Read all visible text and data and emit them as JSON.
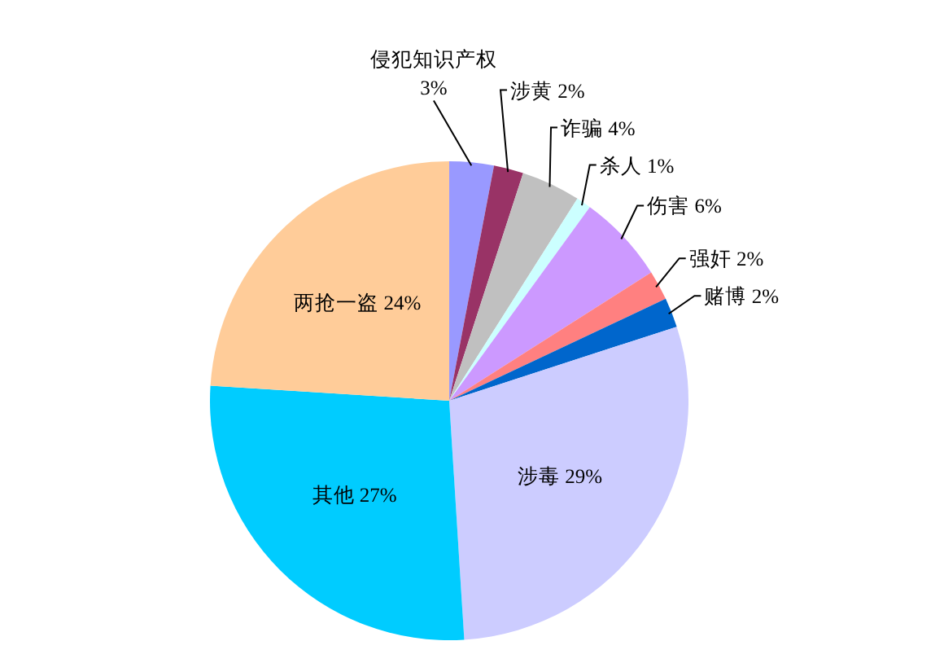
{
  "chart_data": {
    "type": "pie",
    "categories": [
      "侵犯知识产权",
      "涉黄",
      "诈骗",
      "杀人",
      "伤害",
      "强奸",
      "赌博",
      "涉毒",
      "其他",
      "两抢一盗"
    ],
    "values": [
      3,
      2,
      4,
      1,
      6,
      2,
      2,
      29,
      27,
      24
    ],
    "value_labels": [
      "3%",
      "2%",
      "4%",
      "1%",
      "6%",
      "2%",
      "2%",
      "29%",
      "27%",
      "24%"
    ],
    "colors": [
      "#9999ff",
      "#993366",
      "#c0c0c0",
      "#ccffff",
      "#cc99ff",
      "#ff8080",
      "#0066cc",
      "#ccccff",
      "#00ccff",
      "#ffcc99"
    ]
  }
}
